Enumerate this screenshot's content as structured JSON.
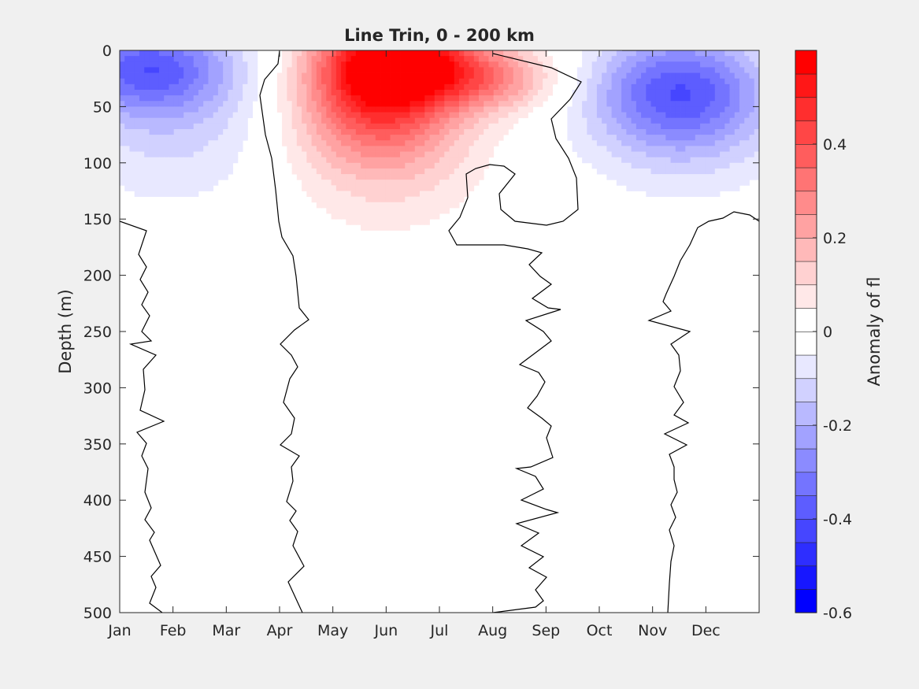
{
  "chart_data": {
    "type": "heatmap",
    "title": "Line Trin, 0 - 200 km",
    "xlabel": "",
    "ylabel": "Depth (m)",
    "x_categories": [
      "Jan",
      "Feb",
      "Mar",
      "Apr",
      "May",
      "Jun",
      "Jul",
      "Aug",
      "Sep",
      "Oct",
      "Nov",
      "Dec"
    ],
    "y_ticks": [
      0,
      50,
      100,
      150,
      200,
      250,
      300,
      350,
      400,
      450,
      500
    ],
    "ylim": [
      0,
      500
    ],
    "y_reversed": true,
    "colorbar": {
      "label": "Anomaly of fl",
      "range": [
        -0.6,
        0.6
      ],
      "ticks": [
        0.4,
        0.2,
        0,
        -0.2,
        -0.4,
        -0.6
      ],
      "levels": 24,
      "neg_color": "#0000ff",
      "pos_color": "#ff0000",
      "zero_color": "#ffffff"
    },
    "features": [
      {
        "kind": "negative",
        "month": 0.5,
        "depth": 15,
        "peak": -0.32
      },
      {
        "kind": "negative",
        "month": 10.5,
        "depth": 35,
        "peak": -0.3
      },
      {
        "kind": "positive",
        "month": 5.2,
        "depth": 8,
        "peak": 0.58
      },
      {
        "kind": "positive",
        "month": 4.8,
        "depth": 50,
        "peak": 0.26
      }
    ],
    "contour_level": 0
  }
}
